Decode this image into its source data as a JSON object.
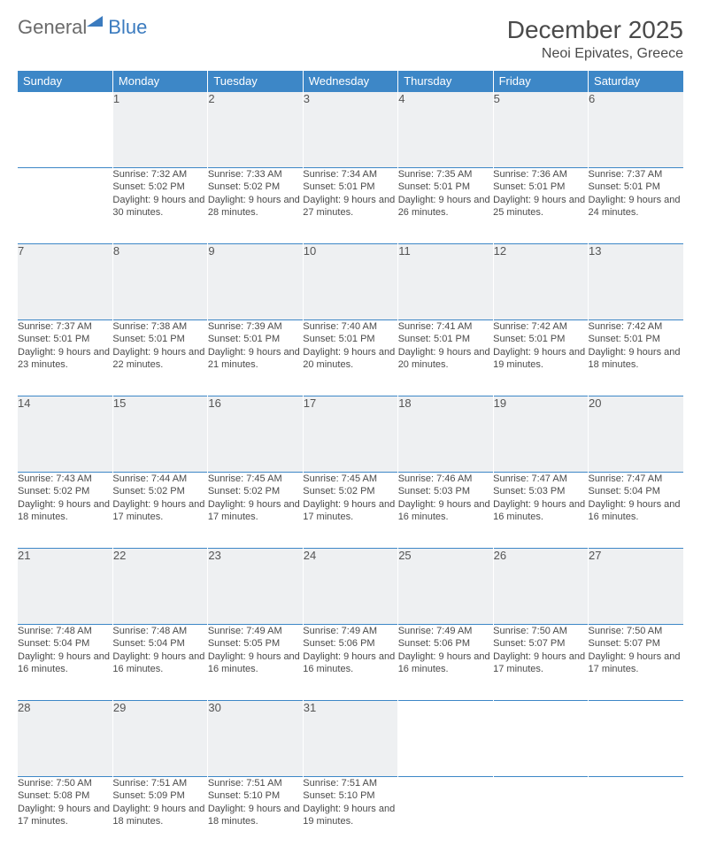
{
  "logo": {
    "text1": "General",
    "text2": "Blue"
  },
  "title": "December 2025",
  "subtitle": "Neoi Epivates, Greece",
  "colors": {
    "header_bg": "#3d87c7",
    "header_fg": "#ffffff",
    "daynum_bg": "#eef0f2",
    "text": "#4a4a4a",
    "rule": "#3d87c7"
  },
  "day_names": [
    "Sunday",
    "Monday",
    "Tuesday",
    "Wednesday",
    "Thursday",
    "Friday",
    "Saturday"
  ],
  "weeks": [
    [
      null,
      {
        "n": "1",
        "sr": "7:32 AM",
        "ss": "5:02 PM",
        "dl": "9 hours and 30 minutes."
      },
      {
        "n": "2",
        "sr": "7:33 AM",
        "ss": "5:02 PM",
        "dl": "9 hours and 28 minutes."
      },
      {
        "n": "3",
        "sr": "7:34 AM",
        "ss": "5:01 PM",
        "dl": "9 hours and 27 minutes."
      },
      {
        "n": "4",
        "sr": "7:35 AM",
        "ss": "5:01 PM",
        "dl": "9 hours and 26 minutes."
      },
      {
        "n": "5",
        "sr": "7:36 AM",
        "ss": "5:01 PM",
        "dl": "9 hours and 25 minutes."
      },
      {
        "n": "6",
        "sr": "7:37 AM",
        "ss": "5:01 PM",
        "dl": "9 hours and 24 minutes."
      }
    ],
    [
      {
        "n": "7",
        "sr": "7:37 AM",
        "ss": "5:01 PM",
        "dl": "9 hours and 23 minutes."
      },
      {
        "n": "8",
        "sr": "7:38 AM",
        "ss": "5:01 PM",
        "dl": "9 hours and 22 minutes."
      },
      {
        "n": "9",
        "sr": "7:39 AM",
        "ss": "5:01 PM",
        "dl": "9 hours and 21 minutes."
      },
      {
        "n": "10",
        "sr": "7:40 AM",
        "ss": "5:01 PM",
        "dl": "9 hours and 20 minutes."
      },
      {
        "n": "11",
        "sr": "7:41 AM",
        "ss": "5:01 PM",
        "dl": "9 hours and 20 minutes."
      },
      {
        "n": "12",
        "sr": "7:42 AM",
        "ss": "5:01 PM",
        "dl": "9 hours and 19 minutes."
      },
      {
        "n": "13",
        "sr": "7:42 AM",
        "ss": "5:01 PM",
        "dl": "9 hours and 18 minutes."
      }
    ],
    [
      {
        "n": "14",
        "sr": "7:43 AM",
        "ss": "5:02 PM",
        "dl": "9 hours and 18 minutes."
      },
      {
        "n": "15",
        "sr": "7:44 AM",
        "ss": "5:02 PM",
        "dl": "9 hours and 17 minutes."
      },
      {
        "n": "16",
        "sr": "7:45 AM",
        "ss": "5:02 PM",
        "dl": "9 hours and 17 minutes."
      },
      {
        "n": "17",
        "sr": "7:45 AM",
        "ss": "5:02 PM",
        "dl": "9 hours and 17 minutes."
      },
      {
        "n": "18",
        "sr": "7:46 AM",
        "ss": "5:03 PM",
        "dl": "9 hours and 16 minutes."
      },
      {
        "n": "19",
        "sr": "7:47 AM",
        "ss": "5:03 PM",
        "dl": "9 hours and 16 minutes."
      },
      {
        "n": "20",
        "sr": "7:47 AM",
        "ss": "5:04 PM",
        "dl": "9 hours and 16 minutes."
      }
    ],
    [
      {
        "n": "21",
        "sr": "7:48 AM",
        "ss": "5:04 PM",
        "dl": "9 hours and 16 minutes."
      },
      {
        "n": "22",
        "sr": "7:48 AM",
        "ss": "5:04 PM",
        "dl": "9 hours and 16 minutes."
      },
      {
        "n": "23",
        "sr": "7:49 AM",
        "ss": "5:05 PM",
        "dl": "9 hours and 16 minutes."
      },
      {
        "n": "24",
        "sr": "7:49 AM",
        "ss": "5:06 PM",
        "dl": "9 hours and 16 minutes."
      },
      {
        "n": "25",
        "sr": "7:49 AM",
        "ss": "5:06 PM",
        "dl": "9 hours and 16 minutes."
      },
      {
        "n": "26",
        "sr": "7:50 AM",
        "ss": "5:07 PM",
        "dl": "9 hours and 17 minutes."
      },
      {
        "n": "27",
        "sr": "7:50 AM",
        "ss": "5:07 PM",
        "dl": "9 hours and 17 minutes."
      }
    ],
    [
      {
        "n": "28",
        "sr": "7:50 AM",
        "ss": "5:08 PM",
        "dl": "9 hours and 17 minutes."
      },
      {
        "n": "29",
        "sr": "7:51 AM",
        "ss": "5:09 PM",
        "dl": "9 hours and 18 minutes."
      },
      {
        "n": "30",
        "sr": "7:51 AM",
        "ss": "5:10 PM",
        "dl": "9 hours and 18 minutes."
      },
      {
        "n": "31",
        "sr": "7:51 AM",
        "ss": "5:10 PM",
        "dl": "9 hours and 19 minutes."
      },
      null,
      null,
      null
    ]
  ],
  "labels": {
    "sunrise": "Sunrise:",
    "sunset": "Sunset:",
    "daylight": "Daylight:"
  }
}
